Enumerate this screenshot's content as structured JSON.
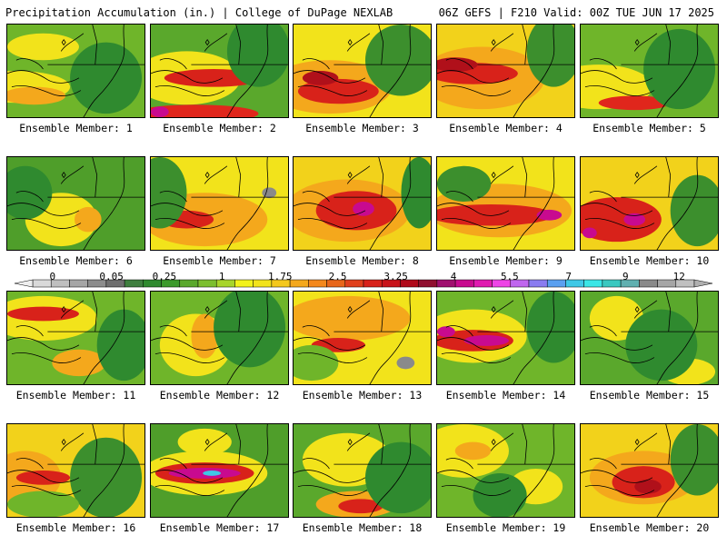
{
  "header": {
    "left": "Precipitation Accumulation (in.) | College of DuPage NEXLAB",
    "right": "06Z GEFS | F210 Valid: 00Z TUE JUN 17 2025"
  },
  "panels": [
    {
      "label": "Ensemble Member: 1",
      "base": "#6fb52a",
      "blobs": [
        [
          "#f2e31b",
          10,
          70,
          60,
          18
        ],
        [
          "#f4a81c",
          30,
          80,
          35,
          10
        ],
        [
          "#f2e31b",
          40,
          25,
          40,
          15
        ],
        [
          "#2f8a2f",
          110,
          60,
          40,
          40
        ]
      ]
    },
    {
      "label": "Ensemble Member: 2",
      "base": "#5aa82c",
      "blobs": [
        [
          "#f2e31b",
          40,
          60,
          60,
          30
        ],
        [
          "#d8221a",
          70,
          60,
          55,
          10
        ],
        [
          "#e0261c",
          50,
          100,
          70,
          10
        ],
        [
          "#c80a8f",
          10,
          98,
          10,
          6
        ],
        [
          "#2f8a2f",
          120,
          30,
          35,
          40
        ]
      ]
    },
    {
      "label": "Ensemble Member: 3",
      "base": "#f2e31b",
      "blobs": [
        [
          "#f4a81c",
          40,
          70,
          70,
          30
        ],
        [
          "#d8221a",
          50,
          75,
          45,
          14
        ],
        [
          "#b0101a",
          30,
          60,
          20,
          8
        ],
        [
          "#3c8f2d",
          120,
          40,
          40,
          40
        ]
      ]
    },
    {
      "label": "Ensemble Member: 4",
      "base": "#f2d21b",
      "blobs": [
        [
          "#f4a81c",
          50,
          60,
          70,
          35
        ],
        [
          "#d8221a",
          40,
          55,
          50,
          12
        ],
        [
          "#b0101a",
          20,
          45,
          25,
          8
        ],
        [
          "#3c8f2d",
          130,
          30,
          30,
          40
        ]
      ]
    },
    {
      "label": "Ensemble Member: 5",
      "base": "#6fb52a",
      "blobs": [
        [
          "#f2e31b",
          20,
          70,
          60,
          25
        ],
        [
          "#e0261c",
          60,
          88,
          40,
          8
        ],
        [
          "#2f8a2f",
          110,
          50,
          40,
          45
        ]
      ]
    },
    {
      "label": "Ensemble Member: 6",
      "base": "#4f9e2a",
      "blobs": [
        [
          "#f2e31b",
          60,
          70,
          40,
          30
        ],
        [
          "#f4a81c",
          90,
          70,
          15,
          14
        ],
        [
          "#2f8a2f",
          20,
          40,
          30,
          30
        ]
      ]
    },
    {
      "label": "Ensemble Member: 7",
      "base": "#f2e31b",
      "blobs": [
        [
          "#f4a81c",
          60,
          70,
          70,
          30
        ],
        [
          "#d8221a",
          40,
          70,
          30,
          10
        ],
        [
          "#3c8f2d",
          10,
          40,
          30,
          40
        ],
        [
          "#8a8a8a",
          132,
          40,
          8,
          6
        ]
      ]
    },
    {
      "label": "Ensemble Member: 8",
      "base": "#f2d21b",
      "blobs": [
        [
          "#f4a81c",
          60,
          60,
          70,
          35
        ],
        [
          "#d8221a",
          70,
          60,
          45,
          22
        ],
        [
          "#c80a8f",
          78,
          58,
          12,
          8
        ],
        [
          "#2f8a2f",
          140,
          40,
          20,
          40
        ]
      ]
    },
    {
      "label": "Ensemble Member: 9",
      "base": "#f2e31b",
      "blobs": [
        [
          "#f4a81c",
          70,
          60,
          80,
          30
        ],
        [
          "#d8221a",
          60,
          65,
          70,
          12
        ],
        [
          "#c80a8f",
          125,
          65,
          14,
          6
        ],
        [
          "#3c8f2d",
          30,
          30,
          30,
          20
        ]
      ]
    },
    {
      "label": "Ensemble Member: 10",
      "base": "#f2d21b",
      "blobs": [
        [
          "#d8221a",
          40,
          70,
          50,
          25
        ],
        [
          "#c80a8f",
          60,
          70,
          12,
          7
        ],
        [
          "#c80a8f",
          10,
          85,
          8,
          6
        ],
        [
          "#3c8f2d",
          130,
          60,
          30,
          40
        ]
      ]
    },
    {
      "label": "Ensemble Member: 11",
      "base": "#6fb52a",
      "blobs": [
        [
          "#f2e31b",
          40,
          30,
          60,
          25
        ],
        [
          "#d8221a",
          40,
          25,
          40,
          8
        ],
        [
          "#f4a81c",
          80,
          80,
          30,
          15
        ],
        [
          "#2f8a2f",
          130,
          60,
          30,
          40
        ]
      ]
    },
    {
      "label": "Ensemble Member: 12",
      "base": "#6fb52a",
      "blobs": [
        [
          "#f2e31b",
          50,
          60,
          40,
          35
        ],
        [
          "#f4a81c",
          60,
          50,
          15,
          25
        ],
        [
          "#2f8a2f",
          110,
          40,
          40,
          45
        ]
      ]
    },
    {
      "label": "Ensemble Member: 13",
      "base": "#f2e31b",
      "blobs": [
        [
          "#f4a81c",
          60,
          30,
          70,
          25
        ],
        [
          "#d8221a",
          50,
          60,
          30,
          8
        ],
        [
          "#8a8a8a",
          125,
          80,
          10,
          7
        ],
        [
          "#6fb52a",
          20,
          80,
          30,
          20
        ]
      ]
    },
    {
      "label": "Ensemble Member: 14",
      "base": "#6fb52a",
      "blobs": [
        [
          "#f2e31b",
          40,
          50,
          60,
          30
        ],
        [
          "#d8221a",
          40,
          55,
          45,
          12
        ],
        [
          "#c80a8f",
          55,
          55,
          25,
          6
        ],
        [
          "#c80a8f",
          10,
          45,
          10,
          6
        ],
        [
          "#2f8a2f",
          130,
          40,
          30,
          40
        ]
      ]
    },
    {
      "label": "Ensemble Member: 15",
      "base": "#5aa82c",
      "blobs": [
        [
          "#f2e31b",
          40,
          30,
          30,
          25
        ],
        [
          "#f2e31b",
          120,
          90,
          30,
          15
        ],
        [
          "#2f8a2f",
          90,
          60,
          40,
          40
        ]
      ]
    },
    {
      "label": "Ensemble Member: 16",
      "base": "#f2d21b",
      "blobs": [
        [
          "#f4a81c",
          20,
          60,
          40,
          30
        ],
        [
          "#d8221a",
          40,
          60,
          30,
          8
        ],
        [
          "#3c8f2d",
          110,
          60,
          40,
          45
        ],
        [
          "#6fb52a",
          40,
          90,
          40,
          15
        ]
      ]
    },
    {
      "label": "Ensemble Member: 17",
      "base": "#4f9e2a",
      "blobs": [
        [
          "#f2e31b",
          60,
          55,
          70,
          25
        ],
        [
          "#d8221a",
          60,
          55,
          55,
          12
        ],
        [
          "#c80a8f",
          60,
          55,
          40,
          6
        ],
        [
          "#3fc8e6",
          68,
          55,
          10,
          3
        ],
        [
          "#f2e31b",
          60,
          20,
          30,
          15
        ]
      ]
    },
    {
      "label": "Ensemble Member: 18",
      "base": "#5aa82c",
      "blobs": [
        [
          "#f2e31b",
          60,
          40,
          50,
          30
        ],
        [
          "#f4a81c",
          70,
          90,
          45,
          15
        ],
        [
          "#d8221a",
          75,
          92,
          25,
          8
        ],
        [
          "#2f8a2f",
          120,
          60,
          40,
          40
        ]
      ]
    },
    {
      "label": "Ensemble Member: 19",
      "base": "#6fb52a",
      "blobs": [
        [
          "#f2e31b",
          30,
          30,
          50,
          30
        ],
        [
          "#f4a81c",
          40,
          30,
          20,
          10
        ],
        [
          "#f2e31b",
          110,
          70,
          30,
          20
        ],
        [
          "#2f8a2f",
          70,
          80,
          30,
          25
        ]
      ]
    },
    {
      "label": "Ensemble Member: 20",
      "base": "#f2d21b",
      "blobs": [
        [
          "#f4a81c",
          70,
          60,
          60,
          30
        ],
        [
          "#d8221a",
          70,
          65,
          35,
          18
        ],
        [
          "#b0101a",
          75,
          70,
          15,
          8
        ],
        [
          "#3c8f2d",
          130,
          40,
          30,
          40
        ]
      ]
    }
  ],
  "colorbar": {
    "colors": [
      "#d9d9d9",
      "#bfbfbf",
      "#a6a6a6",
      "#8c8c8c",
      "#6f6f6f",
      "#3f7f3f",
      "#2f8a2f",
      "#3c9a2c",
      "#5aa82c",
      "#7cbf2e",
      "#a8d52a",
      "#f2f21b",
      "#f2e31b",
      "#f4c81c",
      "#f4a81c",
      "#f4881c",
      "#e8661a",
      "#e0401c",
      "#d8221a",
      "#c8141a",
      "#b00a1a",
      "#901030",
      "#a0106f",
      "#c80a8f",
      "#e01ab0",
      "#ee44e6",
      "#c066ee",
      "#8a7cf0",
      "#5aa0f0",
      "#3fc8e6",
      "#3ae6e6",
      "#3ac8c0",
      "#60b0b0",
      "#8a8a8a",
      "#a6a6a6",
      "#c0c0c0"
    ],
    "ticks": [
      [
        "0",
        0.03
      ],
      [
        "0.05",
        0.119
      ],
      [
        "0.25",
        0.199
      ],
      [
        "1",
        0.286
      ],
      [
        "1.75",
        0.374
      ],
      [
        "2.5",
        0.461
      ],
      [
        "3.25",
        0.549
      ],
      [
        "4",
        0.636
      ],
      [
        "5.5",
        0.721
      ],
      [
        "7",
        0.81
      ],
      [
        "9",
        0.896
      ],
      [
        "12",
        0.977
      ]
    ]
  }
}
